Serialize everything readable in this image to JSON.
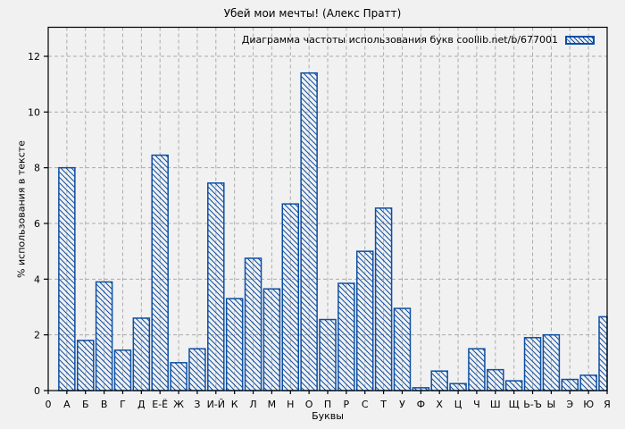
{
  "chart_data": {
    "type": "bar",
    "title": "Убей мои мечты! (Алекс Пратт)",
    "legend": "Диаграмма частоты использования букв coollib.net/b/677001",
    "legend_position": "top-right-inside",
    "xlabel": "Буквы",
    "ylabel": "% использования в тексте",
    "categories": [
      "0",
      "А",
      "Б",
      "В",
      "Г",
      "Д",
      "Е-Ё",
      "Ж",
      "З",
      "И-Й",
      "К",
      "Л",
      "М",
      "Н",
      "О",
      "П",
      "Р",
      "С",
      "Т",
      "У",
      "Ф",
      "Х",
      "Ц",
      "Ч",
      "Ш",
      "Щ",
      "Ь-Ъ",
      "Ы",
      "Э",
      "Ю",
      "Я"
    ],
    "values": [
      0,
      8.0,
      1.8,
      3.9,
      1.45,
      2.6,
      8.45,
      1.0,
      1.5,
      7.45,
      3.3,
      4.75,
      3.65,
      6.7,
      11.4,
      2.55,
      3.85,
      5.0,
      6.55,
      2.95,
      0.1,
      0.7,
      0.25,
      1.5,
      0.75,
      0.35,
      1.9,
      2.0,
      0.4,
      0.55,
      2.65
    ],
    "ylim": [
      0,
      13
    ],
    "yticks": [
      0,
      2,
      4,
      6,
      8,
      10,
      12
    ],
    "grid": true,
    "bar_style": "diagonal-hatch",
    "colors": {
      "bar": "#0d4fa3",
      "background": "#f1f1f1",
      "grid": "#ababab",
      "axis": "#000000",
      "text": "#000000"
    }
  }
}
